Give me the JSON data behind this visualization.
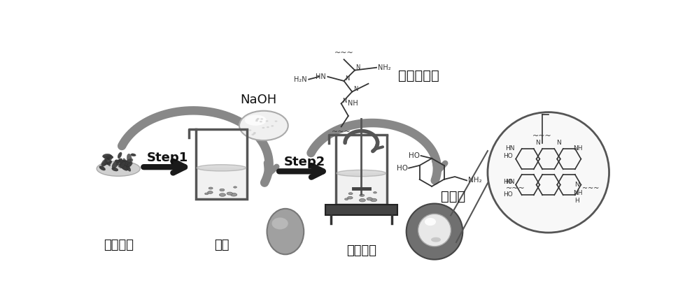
{
  "bg_color": "#ffffff",
  "labels": {
    "soft_powder": "软磁粉末",
    "naoh": "NaOH",
    "ultrasound": "超声",
    "step1": "Step1",
    "step2": "Step2",
    "pei": "聚乙烯亚胺",
    "dopamine": "多巴胺",
    "water_bath": "水浴加热"
  },
  "gray_arrow": "#888888",
  "dark_arrow": "#1a1a1a",
  "line_color": "#333333",
  "text_color": "#111111"
}
